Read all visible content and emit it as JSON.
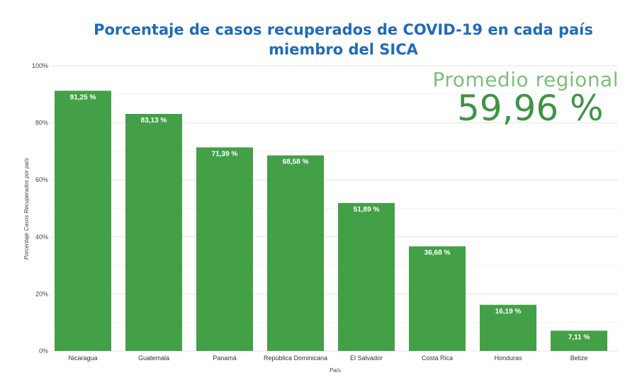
{
  "chart_data": {
    "type": "bar",
    "title_line1": "Porcentaje de casos recuperados de COVID-19 en cada país",
    "title_line2": "miembro del SICA",
    "xlabel": "País",
    "ylabel": "Porcentaje Casos Recuperados por país",
    "ylim": [
      0,
      100
    ],
    "yticks": [
      "0%",
      "20%",
      "40%",
      "60%",
      "80%",
      "100%"
    ],
    "categories": [
      "Nicaragua",
      "Guatemala",
      "Panamá",
      "República Dominicana",
      "El Salvador",
      "Costa Rica",
      "Honduras",
      "Belize"
    ],
    "values": [
      91.25,
      83.13,
      71.39,
      68.58,
      51.89,
      36.68,
      16.19,
      7.11
    ],
    "value_labels": [
      "91,25 %",
      "83,13 %",
      "71,39 %",
      "68,58 %",
      "51,89 %",
      "36,68 %",
      "16,19 %",
      "7,11 %"
    ],
    "bar_color": "#43a047",
    "grid": true
  },
  "annotation": {
    "label": "Promedio regional",
    "value": "59,96 %"
  }
}
